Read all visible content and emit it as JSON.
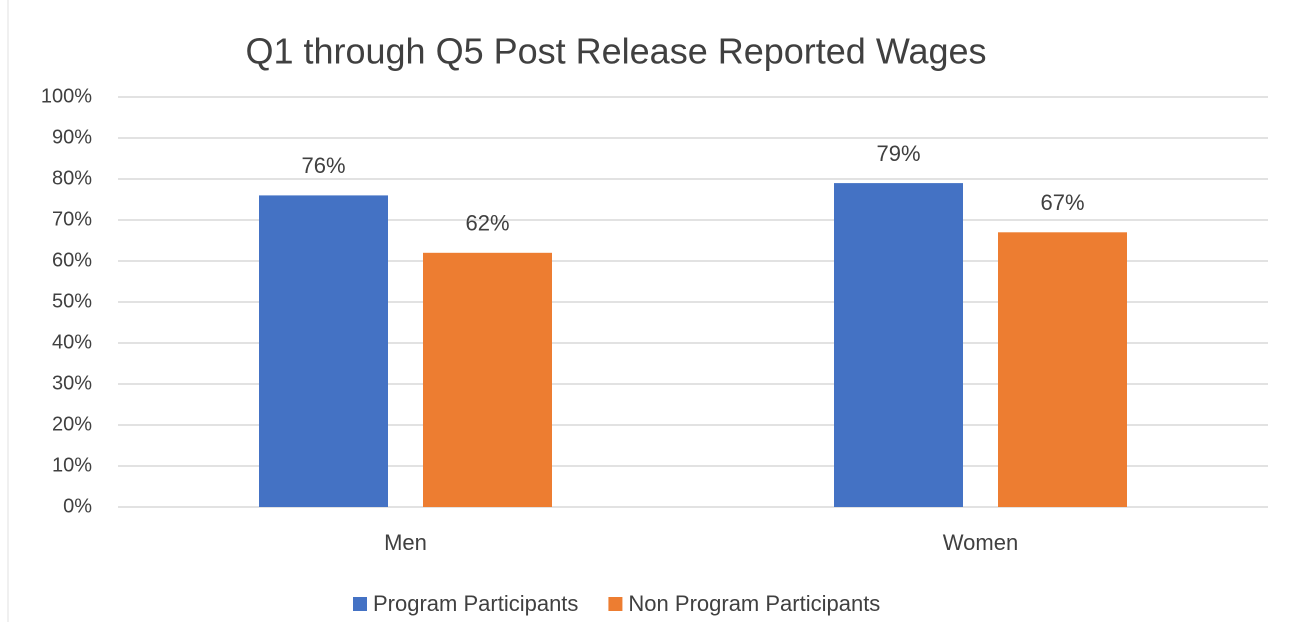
{
  "chart_data": {
    "type": "bar",
    "title": "Q1 through Q5 Post Release Reported Wages",
    "categories": [
      "Men",
      "Women"
    ],
    "series": [
      {
        "name": "Program Participants",
        "color": "#4472c4",
        "values": [
          76,
          79
        ],
        "value_labels": [
          "76%",
          "79%"
        ]
      },
      {
        "name": "Non Program Participants",
        "color": "#ed7d31",
        "values": [
          62,
          67
        ],
        "value_labels": [
          "62%",
          "67%"
        ]
      }
    ],
    "ylim": [
      0,
      100
    ],
    "yticks": [
      {
        "value": 0,
        "label": "0%"
      },
      {
        "value": 10,
        "label": "10%"
      },
      {
        "value": 20,
        "label": "20%"
      },
      {
        "value": 30,
        "label": "30%"
      },
      {
        "value": 40,
        "label": "40%"
      },
      {
        "value": 50,
        "label": "50%"
      },
      {
        "value": 60,
        "label": "60%"
      },
      {
        "value": 70,
        "label": "70%"
      },
      {
        "value": 80,
        "label": "80%"
      },
      {
        "value": 90,
        "label": "90%"
      },
      {
        "value": 100,
        "label": "100%"
      }
    ],
    "grid": true,
    "legend": "bottom"
  }
}
